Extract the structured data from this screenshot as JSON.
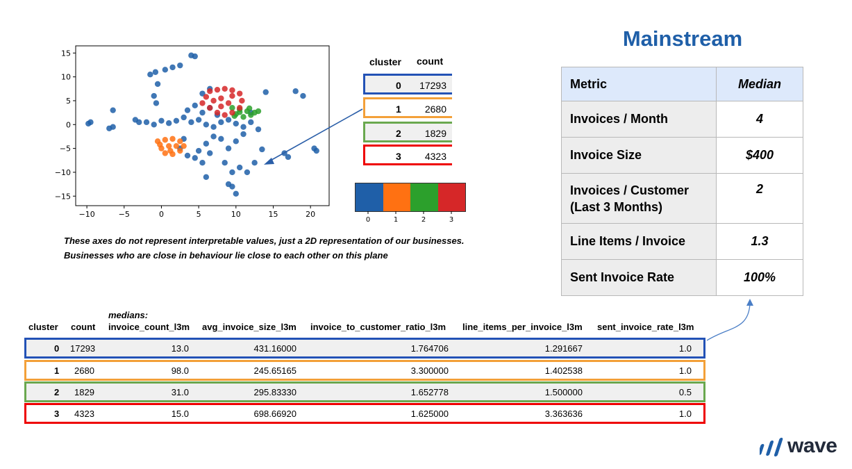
{
  "chart_data": {
    "type": "scatter",
    "xlim": [
      -11.5,
      22.5
    ],
    "ylim": [
      -17,
      16.5
    ],
    "x_ticks": [
      -10,
      -5,
      0,
      5,
      10,
      15,
      20
    ],
    "y_ticks": [
      15,
      10,
      5,
      0,
      -5,
      -10,
      -15
    ],
    "x_tick_labels": [
      "−10",
      "−5",
      "0",
      "5",
      "10",
      "15",
      "20"
    ],
    "y_tick_labels": [
      "15",
      "10",
      "5",
      "0",
      "−5",
      "−10",
      "−15"
    ],
    "series": [
      {
        "color": "#1f5fa8",
        "points": [
          [
            4.0,
            14.5
          ],
          [
            4.5,
            14.3
          ],
          [
            -1.5,
            10.5
          ],
          [
            -0.8,
            11.0
          ],
          [
            0.5,
            11.5
          ],
          [
            1.5,
            12.0
          ],
          [
            2.5,
            12.4
          ],
          [
            -0.5,
            8.5
          ],
          [
            -1.0,
            6.0
          ],
          [
            -0.7,
            4.5
          ],
          [
            -9.5,
            0.5
          ],
          [
            -9.8,
            0.2
          ],
          [
            -6.5,
            -0.5
          ],
          [
            -7.0,
            -0.8
          ],
          [
            -6.5,
            3.0
          ],
          [
            -3.5,
            1.0
          ],
          [
            -3.0,
            0.5
          ],
          [
            -2.0,
            0.5
          ],
          [
            -1.0,
            0.0
          ],
          [
            0.0,
            0.8
          ],
          [
            1.0,
            0.3
          ],
          [
            2.0,
            0.8
          ],
          [
            3.0,
            1.5
          ],
          [
            4.0,
            0.5
          ],
          [
            5.0,
            1.0
          ],
          [
            6.0,
            0.0
          ],
          [
            7.0,
            -0.5
          ],
          [
            8.0,
            0.5
          ],
          [
            9.0,
            1.0
          ],
          [
            10.0,
            0.2
          ],
          [
            11.0,
            -0.5
          ],
          [
            12.0,
            0.5
          ],
          [
            13.0,
            -1.0
          ],
          [
            3.5,
            3.0
          ],
          [
            4.5,
            4.0
          ],
          [
            5.5,
            2.5
          ],
          [
            6.5,
            3.5
          ],
          [
            7.0,
            -2.5
          ],
          [
            6.0,
            -4.0
          ],
          [
            5.0,
            -5.5
          ],
          [
            4.5,
            -7.0
          ],
          [
            5.5,
            -8.0
          ],
          [
            6.5,
            -6.0
          ],
          [
            8.0,
            -3.0
          ],
          [
            9.0,
            -5.0
          ],
          [
            10.0,
            -3.5
          ],
          [
            11.0,
            -2.0
          ],
          [
            8.5,
            -8.0
          ],
          [
            9.5,
            -10.0
          ],
          [
            10.5,
            -9.0
          ],
          [
            11.5,
            -10.0
          ],
          [
            12.5,
            -8.0
          ],
          [
            9.5,
            -13.0
          ],
          [
            10.0,
            -14.5
          ],
          [
            9.0,
            -12.5
          ],
          [
            6.0,
            -11.0
          ],
          [
            3.5,
            -6.5
          ],
          [
            2.5,
            -5.0
          ],
          [
            3.0,
            -3.0
          ],
          [
            18.0,
            7.0
          ],
          [
            19.0,
            6.0
          ],
          [
            20.5,
            -5.0
          ],
          [
            20.8,
            -5.5
          ],
          [
            14.0,
            6.8
          ],
          [
            13.5,
            -5.2
          ],
          [
            16.5,
            -6.0
          ],
          [
            17.0,
            -6.8
          ],
          [
            12.0,
            2.5
          ],
          [
            7.5,
            2.0
          ],
          [
            5.5,
            6.5
          ],
          [
            6.5,
            7.5
          ]
        ]
      },
      {
        "color": "#ff7112",
        "points": [
          [
            -0.5,
            -3.5
          ],
          [
            0.5,
            -3.2
          ],
          [
            1.5,
            -3.0
          ],
          [
            2.5,
            -3.5
          ],
          [
            3.0,
            -4.5
          ],
          [
            2.5,
            -5.5
          ],
          [
            1.5,
            -6.2
          ],
          [
            0.5,
            -6.0
          ],
          [
            0.0,
            -5.0
          ],
          [
            1.0,
            -4.5
          ],
          [
            2.0,
            -4.5
          ],
          [
            1.2,
            -5.5
          ],
          [
            -0.2,
            -4.2
          ]
        ]
      },
      {
        "color": "#2ca02c",
        "points": [
          [
            9.5,
            3.5
          ],
          [
            10.5,
            3.2
          ],
          [
            11.5,
            2.8
          ],
          [
            12.5,
            2.5
          ],
          [
            13.0,
            2.8
          ],
          [
            12.0,
            2.0
          ],
          [
            11.0,
            1.6
          ],
          [
            10.0,
            2.2
          ],
          [
            10.5,
            2.6
          ],
          [
            11.8,
            3.4
          ],
          [
            9.8,
            1.8
          ]
        ]
      },
      {
        "color": "#d62728",
        "points": [
          [
            6.5,
            7.0
          ],
          [
            7.5,
            7.3
          ],
          [
            8.5,
            7.5
          ],
          [
            9.5,
            7.2
          ],
          [
            10.5,
            6.5
          ],
          [
            10.8,
            5.0
          ],
          [
            10.5,
            3.5
          ],
          [
            9.5,
            2.5
          ],
          [
            8.5,
            2.0
          ],
          [
            7.5,
            2.5
          ],
          [
            6.5,
            3.5
          ],
          [
            5.5,
            4.5
          ],
          [
            6.0,
            5.8
          ],
          [
            7.0,
            5.0
          ],
          [
            8.0,
            5.5
          ],
          [
            9.0,
            4.5
          ],
          [
            8.0,
            3.8
          ],
          [
            9.5,
            6.0
          ]
        ]
      }
    ]
  },
  "cluster_table": {
    "header_cluster": "cluster",
    "header_count": "count",
    "rows": [
      {
        "cluster": "0",
        "count": "17293"
      },
      {
        "cluster": "1",
        "count": "2680"
      },
      {
        "cluster": "2",
        "count": "1829"
      },
      {
        "cluster": "3",
        "count": "4323"
      }
    ]
  },
  "colorbar": {
    "colors": [
      "#1f5fa8",
      "#ff7112",
      "#2ca02c",
      "#d62728"
    ],
    "tick_labels": [
      "0",
      "1",
      "2",
      "3"
    ]
  },
  "cluster_border_colors": [
    "#2352b6",
    "#f3a039",
    "#6aa84f",
    "#ee0000"
  ],
  "caption": {
    "line1": "These axes do not represent interpretable values, just a 2D representation of our businesses.",
    "line2": "Businesses who are close in behaviour lie close to each other on this plane"
  },
  "title": "Mainstream",
  "metric_table": {
    "header_metric": "Metric",
    "header_median": "Median",
    "rows": [
      {
        "metric": "Invoices / Month",
        "median": "4"
      },
      {
        "metric": "Invoice Size",
        "median": "$400"
      },
      {
        "metric": "Invoices / Customer (Last 3 Months)",
        "median": "2"
      },
      {
        "metric": "Line Items / Invoice",
        "median": "1.3"
      },
      {
        "metric": "Sent Invoice Rate",
        "median": "100%"
      }
    ]
  },
  "medians_table": {
    "medians_label": "medians:",
    "headers": [
      "cluster",
      "count",
      "invoice_count_l3m",
      "avg_invoice_size_l3m",
      "invoice_to_customer_ratio_l3m",
      "line_items_per_invoice_l3m",
      "sent_invoice_rate_l3m"
    ],
    "rows": [
      [
        "0",
        "17293",
        "13.0",
        "431.16000",
        "1.764706",
        "1.291667",
        "1.0"
      ],
      [
        "1",
        "2680",
        "98.0",
        "245.65165",
        "3.300000",
        "1.402538",
        "1.0"
      ],
      [
        "2",
        "1829",
        "31.0",
        "295.83330",
        "1.652778",
        "1.500000",
        "0.5"
      ],
      [
        "3",
        "4323",
        "15.0",
        "698.66920",
        "1.625000",
        "3.363636",
        "1.0"
      ]
    ]
  },
  "logo": {
    "text": "wave",
    "color": "#1f5fa8"
  }
}
